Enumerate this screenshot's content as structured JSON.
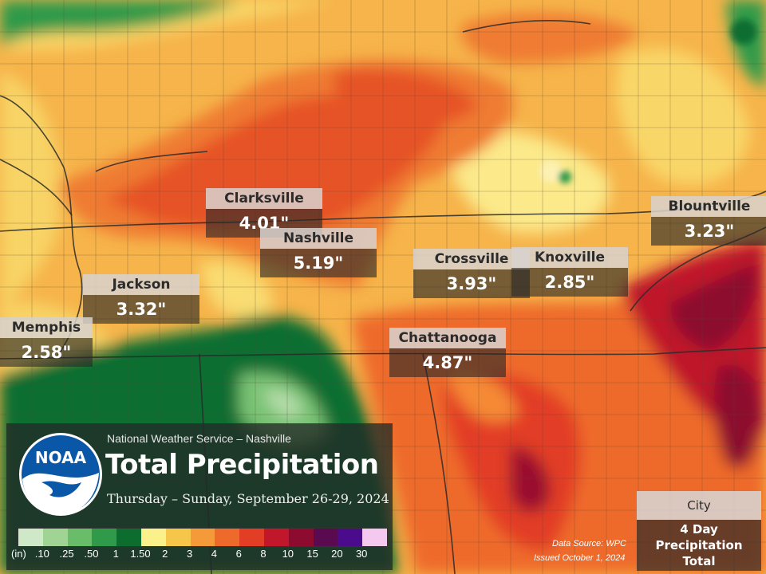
{
  "colors": {
    "precip_base": "#f6b44a",
    "panel": "#232a26",
    "noaa_blue": "#0a57a8"
  },
  "cities": [
    {
      "id": "clarksville",
      "name": "Clarksville",
      "value": "4.01\""
    },
    {
      "id": "nashville",
      "name": "Nashville",
      "value": "5.19\""
    },
    {
      "id": "jackson",
      "name": "Jackson",
      "value": "3.32\""
    },
    {
      "id": "memphis",
      "name": "Memphis",
      "value": "2.58\""
    },
    {
      "id": "crossville",
      "name": "Crossville",
      "value": "3.93\""
    },
    {
      "id": "knoxville",
      "name": "Knoxville",
      "value": "2.85\""
    },
    {
      "id": "chattanooga",
      "name": "Chattanooga",
      "value": "4.87\""
    },
    {
      "id": "blountville",
      "name": "Blountville",
      "value": "3.23\""
    }
  ],
  "panel": {
    "logo_text": "NOAA",
    "office": "National Weather Service – Nashville",
    "title": "Total Precipitation",
    "dates": "Thursday – Sunday, September  26-29, 2024"
  },
  "legend": {
    "units": "(in)",
    "labels": [
      ".10",
      ".25",
      ".50",
      "1",
      "1.50",
      "2",
      "3",
      "4",
      "6",
      "8",
      "10",
      "15",
      "20",
      "30"
    ],
    "colors": [
      "#cfe9c8",
      "#9fd494",
      "#69bd68",
      "#2f9a4a",
      "#0d6d2f",
      "#fbf18a",
      "#f6c64a",
      "#f59a39",
      "#ee6a2b",
      "#e23e26",
      "#c0182a",
      "#8c0b2e",
      "#5a0a4e",
      "#4a0b8c",
      "#f5c8f0"
    ]
  },
  "key": {
    "city": "City",
    "value": "4 Day Precipitation Total"
  },
  "footer": {
    "source": "Data Source: WPC",
    "issued": "Issued October 1, 2024"
  }
}
